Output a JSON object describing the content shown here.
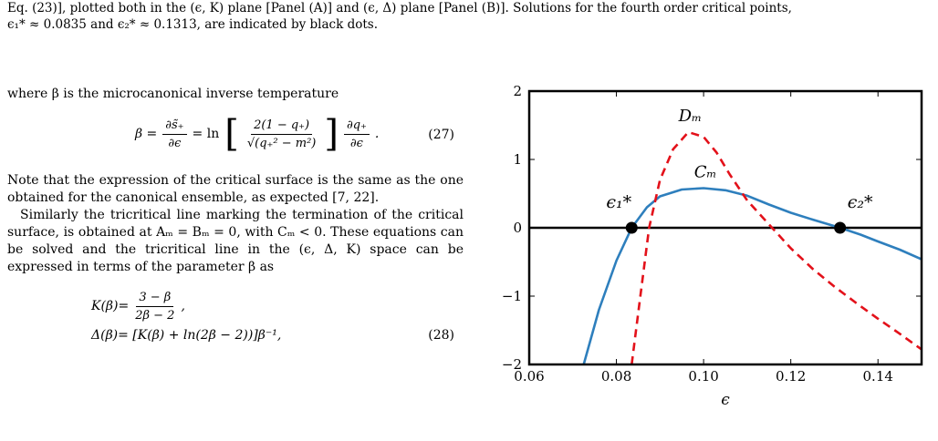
{
  "caption": {
    "line1": "Eq. (23)], plotted both in the (ϵ, K) plane [Panel (A)] and (ϵ, Δ) plane [Panel (B)]. Solutions for the fourth order critical points,",
    "line2": "ϵ₁* ≈ 0.0835 and ϵ₂* ≈ 0.1313, are indicated by black dots."
  },
  "text": {
    "intro": "where β is the microcanonical inverse temperature",
    "eq27": {
      "lhs": "β =",
      "d_num": "∂s̃₊",
      "d_den": "∂ϵ",
      "eq": "= ln",
      "in_num": "2(1 − q₊)",
      "in_den": "√(q₊² − m²)",
      "q_num": "∂q₊",
      "q_den": "∂ϵ",
      "number": "(27)"
    },
    "para1": "Note that the expression of the critical surface is the same as the one obtained for the canonical ensemble, as expected [7, 22].",
    "para2": "Similarly the tricritical line marking the termination of the critical surface, is obtained at Aₘ = Bₘ = 0, with Cₘ < 0. These equations can be solved and the tricritical line in the (ϵ, Δ, K) space can be expressed in terms of the parameter β as",
    "eq28": {
      "k_lhs": "K(β)=",
      "k_num": "3 − β",
      "k_den": "2β − 2",
      "d_line": "Δ(β)= [K(β) + ln(2β − 2))]β⁻¹,",
      "number": "(28)"
    }
  },
  "chart_data": {
    "type": "line",
    "xlabel": "ϵ",
    "ylabel": "",
    "xlim": [
      0.06,
      0.15
    ],
    "ylim": [
      -2,
      2
    ],
    "x_ticks": [
      "0.06",
      "0.08",
      "0.10",
      "0.12",
      "0.14"
    ],
    "y_ticks": [
      "2",
      "1",
      "0",
      "−1",
      "−2"
    ],
    "series": [
      {
        "name": "Cₘ",
        "color": "#2e7fbd",
        "style": "solid",
        "points": [
          [
            0.0725,
            -2.0
          ],
          [
            0.076,
            -1.2
          ],
          [
            0.08,
            -0.48
          ],
          [
            0.0835,
            0.0
          ],
          [
            0.087,
            0.3
          ],
          [
            0.09,
            0.46
          ],
          [
            0.095,
            0.56
          ],
          [
            0.1,
            0.58
          ],
          [
            0.105,
            0.55
          ],
          [
            0.11,
            0.47
          ],
          [
            0.115,
            0.34
          ],
          [
            0.12,
            0.22
          ],
          [
            0.125,
            0.12
          ],
          [
            0.1313,
            0.0
          ],
          [
            0.136,
            -0.1
          ],
          [
            0.14,
            -0.2
          ],
          [
            0.145,
            -0.32
          ],
          [
            0.15,
            -0.46
          ]
        ]
      },
      {
        "name": "Dₘ",
        "color": "#e3111a",
        "style": "dashed",
        "points": [
          [
            0.0835,
            -2.0
          ],
          [
            0.0855,
            -1.0
          ],
          [
            0.0875,
            0.0
          ],
          [
            0.09,
            0.7
          ],
          [
            0.093,
            1.15
          ],
          [
            0.0965,
            1.4
          ],
          [
            0.1,
            1.33
          ],
          [
            0.103,
            1.1
          ],
          [
            0.106,
            0.78
          ],
          [
            0.11,
            0.4
          ],
          [
            0.115,
            0.05
          ],
          [
            0.12,
            -0.3
          ],
          [
            0.125,
            -0.6
          ],
          [
            0.13,
            -0.86
          ],
          [
            0.135,
            -1.1
          ],
          [
            0.14,
            -1.33
          ],
          [
            0.145,
            -1.55
          ],
          [
            0.15,
            -1.78
          ]
        ]
      }
    ],
    "critical_points": [
      {
        "label": "ϵ₁*",
        "x": 0.0835,
        "y": 0
      },
      {
        "label": "ϵ₂*",
        "x": 0.1313,
        "y": 0
      }
    ],
    "hline_y": 0,
    "annotations": [
      {
        "text": "Dₘ",
        "series": "Dₘ"
      },
      {
        "text": "Cₘ",
        "series": "Cₘ"
      }
    ]
  }
}
